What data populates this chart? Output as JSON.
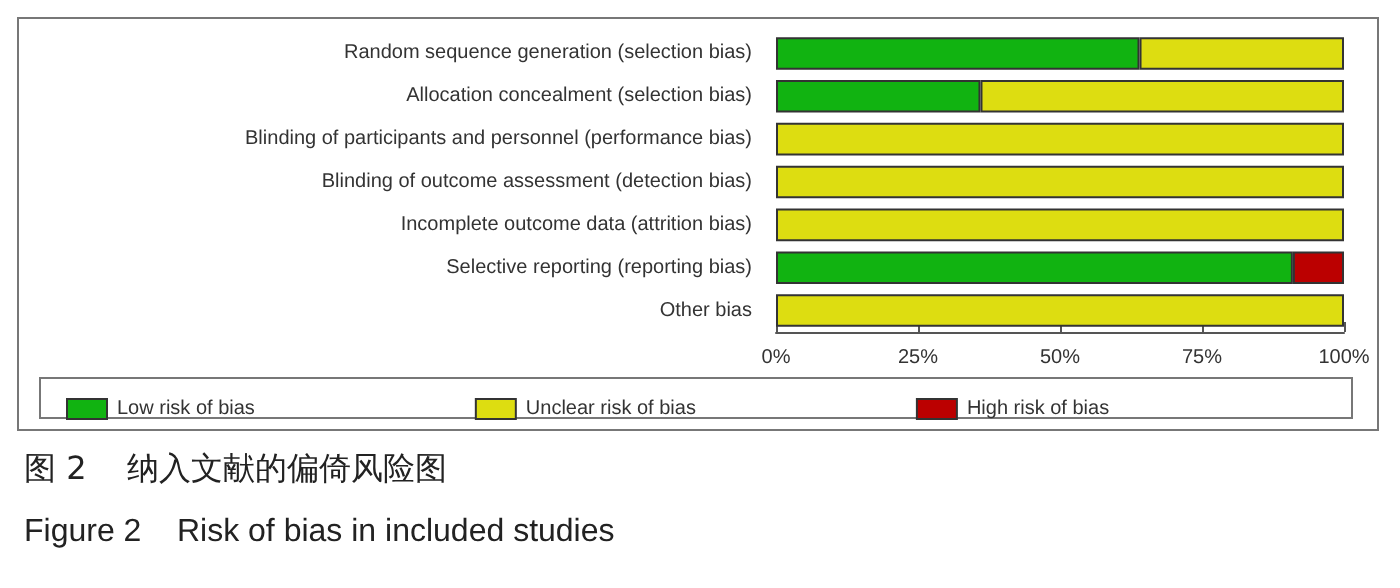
{
  "chart_data": {
    "type": "bar",
    "orientation": "horizontal",
    "stacked": true,
    "title": "图 2    纳入文献的偏倚风险图",
    "subtitle": "Figure 2    Risk of bias in included studies",
    "categories": [
      "Random sequence generation (selection bias)",
      "Allocation concealment (selection bias)",
      "Blinding of participants and personnel (performance bias)",
      "Blinding of outcome assessment (detection bias)",
      "Incomplete outcome data (attrition bias)",
      "Selective reporting (reporting bias)",
      "Other bias"
    ],
    "series": [
      {
        "name": "Low risk of bias",
        "color": "#11b311",
        "values": [
          64,
          36,
          0,
          0,
          0,
          91,
          0
        ]
      },
      {
        "name": "Unclear risk of bias",
        "color": "#dddd11",
        "values": [
          36,
          64,
          100,
          100,
          100,
          0,
          100
        ]
      },
      {
        "name": "High risk of bias",
        "color": "#bb0000",
        "values": [
          0,
          0,
          0,
          0,
          0,
          9,
          0
        ]
      }
    ],
    "xlim": [
      0,
      100
    ],
    "xticks": [
      {
        "value": 0,
        "label": "0%"
      },
      {
        "value": 25,
        "label": "25%"
      },
      {
        "value": 50,
        "label": "50%"
      },
      {
        "value": 75,
        "label": "75%"
      },
      {
        "value": 100,
        "label": "100%"
      }
    ],
    "grid": false,
    "legend": "bottom"
  }
}
